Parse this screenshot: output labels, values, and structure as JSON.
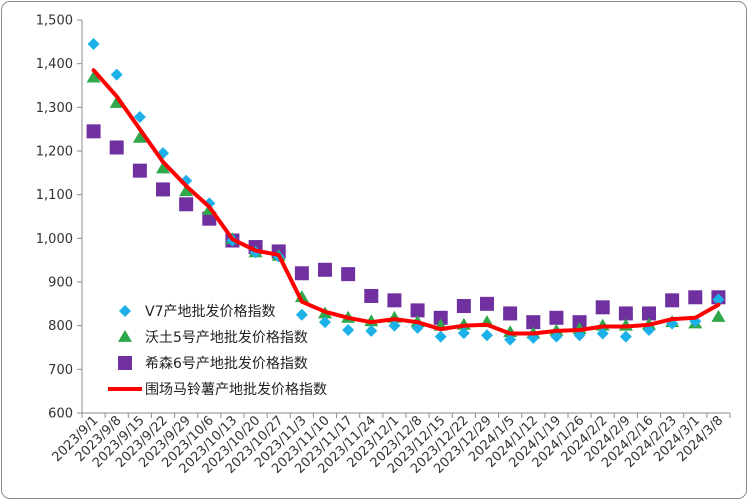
{
  "chart_data": {
    "type": "line",
    "title": "",
    "xlabel": "",
    "ylabel": "",
    "ylim": [
      600,
      1500
    ],
    "y_ticks": [
      "600",
      "700",
      "800",
      "900",
      "1,000",
      "1,100",
      "1,200",
      "1,300",
      "1,400",
      "1,500"
    ],
    "y_tick_values": [
      600,
      700,
      800,
      900,
      1000,
      1100,
      1200,
      1300,
      1400,
      1500
    ],
    "grid": false,
    "legend": "lower-left (inside plot)",
    "categories": [
      "2023/9/1",
      "2023/9/8",
      "2023/9/15",
      "2023/9/22",
      "2023/9/29",
      "2023/10/6",
      "2023/10/13",
      "2023/10/20",
      "2023/10/27",
      "2023/11/3",
      "2023/11/10",
      "2023/11/17",
      "2023/11/24",
      "2023/12/1",
      "2023/12/8",
      "2023/12/15",
      "2023/12/22",
      "2023/12/29",
      "2024/1/5",
      "2024/1/12",
      "2024/1/19",
      "2024/1/26",
      "2024/2/2",
      "2024/2/9",
      "2024/2/16",
      "2024/2/23",
      "2024/3/1",
      "2024/3/8"
    ],
    "series": [
      {
        "name": "V7产地批发价格指数",
        "marker": "diamond",
        "color": "#1BB1E8",
        "values": [
          1445,
          1375,
          1278,
          1195,
          1132,
          1080,
          995,
          968,
          958,
          825,
          808,
          790,
          788,
          800,
          795,
          775,
          783,
          778,
          768,
          772,
          775,
          778,
          782,
          775,
          790,
          805,
          810,
          860
        ]
      },
      {
        "name": "沃土5号产地批发价格指数",
        "marker": "triangle",
        "color": "#2EA84A",
        "values": [
          1368,
          1310,
          1230,
          1160,
          1108,
          1065,
          998,
          968,
          960,
          865,
          828,
          818,
          810,
          818,
          808,
          800,
          802,
          808,
          785,
          782,
          788,
          792,
          800,
          800,
          802,
          808,
          805,
          820
        ]
      },
      {
        "name": "希森6号产地批发价格指数",
        "marker": "square",
        "color": "#7030A0",
        "values": [
          1245,
          1208,
          1155,
          1112,
          1078,
          1045,
          995,
          980,
          970,
          920,
          928,
          918,
          868,
          858,
          835,
          818,
          845,
          850,
          828,
          808,
          818,
          808,
          842,
          828,
          828,
          858,
          865,
          865
        ]
      },
      {
        "name": "围场马铃薯产地批发价格指数",
        "marker": "line",
        "color": "#FF0000",
        "values": [
          1385,
          1325,
          1250,
          1175,
          1120,
          1072,
          998,
          972,
          962,
          855,
          832,
          818,
          808,
          815,
          808,
          792,
          800,
          802,
          782,
          782,
          788,
          790,
          798,
          798,
          802,
          815,
          818,
          848
        ]
      }
    ]
  }
}
